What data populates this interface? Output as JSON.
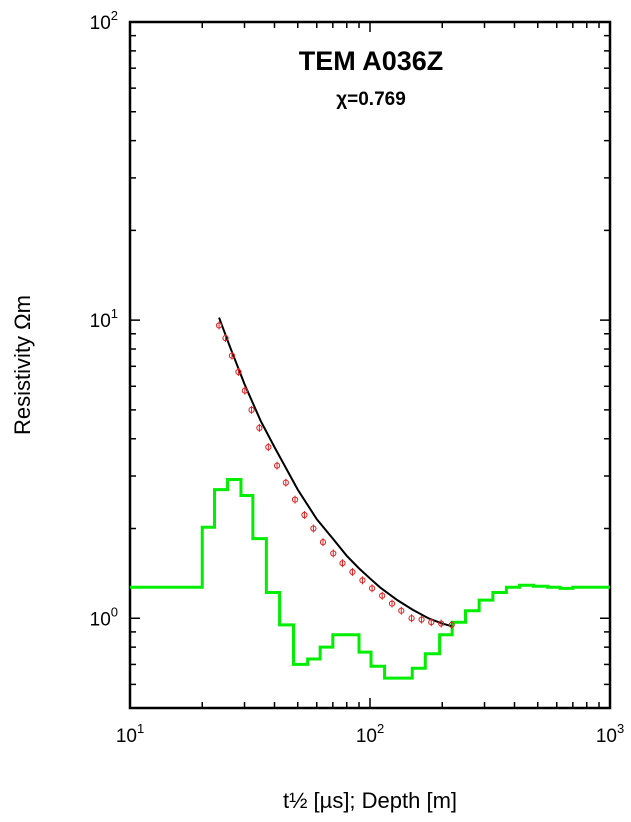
{
  "chart_data": {
    "type": "line",
    "title": "TEM A036Z",
    "subtitle": "χ=0.769",
    "xlabel": "t½ [µs]; Depth [m]",
    "ylabel": "Resistivity Ωm",
    "xscale": "log",
    "yscale": "log",
    "xlim": [
      10,
      1000
    ],
    "ylim": [
      0.5,
      100
    ],
    "grid": false,
    "x_ticks": [
      {
        "base": "10",
        "exp": "1",
        "value": 10
      },
      {
        "base": "10",
        "exp": "2",
        "value": 100
      },
      {
        "base": "10",
        "exp": "3",
        "value": 1000
      }
    ],
    "y_ticks": [
      {
        "base": "10",
        "exp": "0",
        "value": 1
      },
      {
        "base": "10",
        "exp": "1",
        "value": 10
      },
      {
        "base": "10",
        "exp": "2",
        "value": 100
      }
    ],
    "colors": {
      "model": "#00ee00",
      "fit": "#000000",
      "observed": "#dd2222",
      "axes": "#000000"
    },
    "series": [
      {
        "style": "step",
        "color": "#00ee00",
        "x": [
          10,
          20,
          22.5,
          25.5,
          29,
          32.5,
          37,
          42,
          48,
          55,
          62,
          70,
          80,
          90,
          101,
          115,
          130,
          150,
          170,
          195,
          220,
          250,
          285,
          325,
          370,
          420,
          480,
          550,
          620,
          700,
          800,
          1000
        ],
        "y": [
          1.27,
          2.02,
          2.7,
          2.92,
          2.58,
          1.85,
          1.22,
          0.95,
          0.7,
          0.73,
          0.8,
          0.88,
          0.88,
          0.77,
          0.69,
          0.63,
          0.63,
          0.68,
          0.76,
          0.88,
          0.97,
          1.06,
          1.15,
          1.22,
          1.27,
          1.29,
          1.28,
          1.27,
          1.26,
          1.27,
          1.27,
          1.27
        ]
      },
      {
        "style": "line",
        "color": "#000000",
        "x": [
          23.5,
          26,
          30,
          35,
          40,
          50,
          60,
          70,
          80,
          90,
          100,
          110,
          130,
          150,
          175,
          200,
          220
        ],
        "y": [
          10.2,
          8.2,
          6.1,
          4.6,
          3.75,
          2.7,
          2.15,
          1.85,
          1.62,
          1.47,
          1.36,
          1.27,
          1.15,
          1.07,
          1.0,
          0.96,
          0.94
        ]
      },
      {
        "style": "markers",
        "color": "#dd2222",
        "x": [
          23.5,
          25.0,
          26.6,
          28.3,
          30.1,
          32.1,
          34.6,
          37.7,
          41.0,
          44.6,
          48.7,
          53.3,
          58.1,
          63.7,
          70.3,
          76.8,
          84.5,
          93.0,
          102.0,
          112.4,
          123.5,
          135.0,
          149.0,
          164.0,
          180.0,
          198.0,
          219.0
        ],
        "y": [
          9.6,
          8.7,
          7.6,
          6.7,
          5.8,
          5.0,
          4.35,
          3.75,
          3.25,
          2.85,
          2.5,
          2.22,
          2.0,
          1.8,
          1.65,
          1.53,
          1.43,
          1.34,
          1.26,
          1.19,
          1.12,
          1.06,
          1.0,
          0.99,
          0.97,
          0.96,
          0.95
        ]
      }
    ]
  }
}
